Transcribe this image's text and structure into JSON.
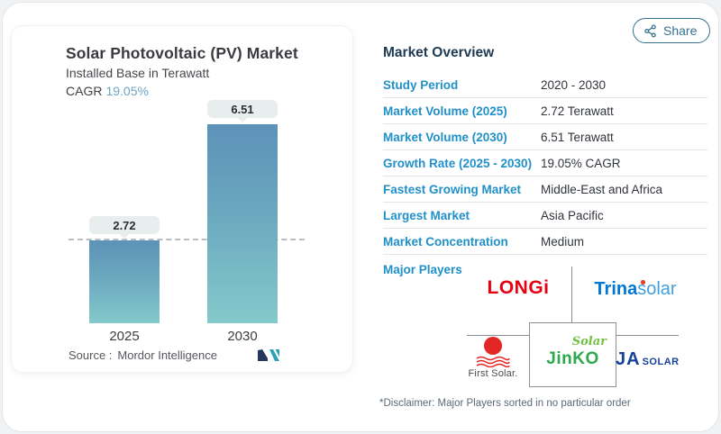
{
  "share": {
    "label": "Share"
  },
  "chart": {
    "title": "Solar Photovoltaic (PV) Market",
    "subtitle": "Installed Base in Terawatt",
    "cagr_label": "CAGR",
    "cagr_value": "19.05%",
    "source_label": "Source :",
    "source_value": "Mordor Intelligence"
  },
  "chart_data": {
    "type": "bar",
    "title": "Solar Photovoltaic (PV) Market",
    "subtitle": "Installed Base in Terawatt",
    "categories": [
      "2025",
      "2030"
    ],
    "values": [
      2.72,
      6.51
    ],
    "value_labels": [
      "2.72",
      "6.51"
    ],
    "ylabel": "Installed Base in Terawatt",
    "ylim": [
      0,
      7
    ],
    "annotations": [
      "CAGR 19.05%",
      "dashed horizontal reference line at 2.72"
    ],
    "legend": "none",
    "bar_gradient": [
      "#5d92b8",
      "#84c9cb"
    ]
  },
  "overview": {
    "title": "Market Overview",
    "rows": [
      {
        "label": "Study Period",
        "value": "2020 - 2030"
      },
      {
        "label": "Market Volume (2025)",
        "value": "2.72 Terawatt"
      },
      {
        "label": "Market Volume (2030)",
        "value": "6.51 Terawatt"
      },
      {
        "label": "Growth Rate (2025 - 2030)",
        "value": "19.05% CAGR"
      },
      {
        "label": "Fastest Growing Market",
        "value": "Middle-East and Africa"
      },
      {
        "label": "Largest Market",
        "value": "Asia Pacific"
      },
      {
        "label": "Market Concentration",
        "value": "Medium"
      }
    ],
    "major_players_label": "Major Players",
    "players": {
      "longi": "LONGi",
      "trina_bold": "Trina",
      "trina_light": "solar",
      "first_solar": "First Solar.",
      "jinko_script": "Solar",
      "jinko_main": "JinKO",
      "ja_big": "JA",
      "ja_small": "SOLAR"
    },
    "disclaimer": "*Disclaimer: Major Players sorted in no particular order"
  },
  "colors": {
    "accent_blue": "#2090c9",
    "heading_navy": "#1e3a53",
    "cagr_blue": "#6fa4c4",
    "share_teal": "#35708e",
    "longi_red": "#e60012",
    "trina_blue": "#0077d4",
    "first_solar_red": "#e32726",
    "jinko_green": "#2ca84d",
    "ja_navy": "#16419b"
  }
}
